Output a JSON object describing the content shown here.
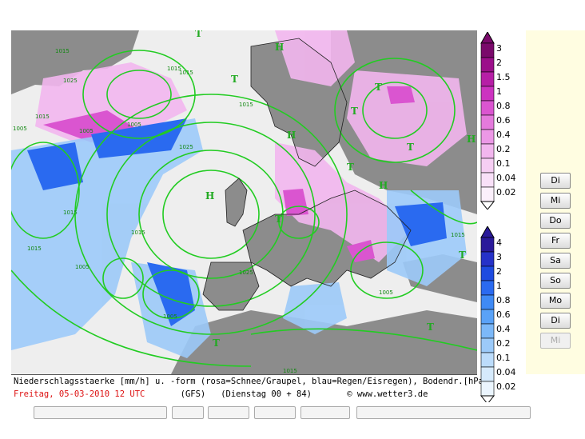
{
  "caption": {
    "line1": "Niederschlagsstaerke [mm/h] u. -form (rosa=Schnee/Graupel, blau=Regen/Eisregen), Bodendr.[hPa]",
    "date": "Freitag, 05-03-2010  12 UTC",
    "model": "(GFS)",
    "run": "(Dienstag 00 + 84)",
    "copyright": "© www.wetter3.de"
  },
  "legend_snow": {
    "color_hint": "magenta",
    "labels": [
      "3",
      "2",
      "1.5",
      "1",
      "0.8",
      "0.6",
      "0.4",
      "0.2",
      "0.1",
      "0.04",
      "0.02"
    ],
    "colors": [
      "#7a0a6b",
      "#9b0f8a",
      "#b61ea6",
      "#cc33c0",
      "#da55d0",
      "#e47adc",
      "#ec98e6",
      "#f2b6ee",
      "#f6cef3",
      "#f9e0f8",
      "#fcf0fc"
    ]
  },
  "legend_rain": {
    "color_hint": "blue",
    "labels": [
      "4",
      "3",
      "2",
      "1",
      "0.8",
      "0.6",
      "0.4",
      "0.2",
      "0.1",
      "0.04",
      "0.02"
    ],
    "colors": [
      "#2a1a9a",
      "#2632c8",
      "#1e4be0",
      "#2a6af0",
      "#3f8af5",
      "#5aa2f7",
      "#7cb8f8",
      "#9ccaf9",
      "#bcdcfb",
      "#d6eafc",
      "#ebf5fe"
    ]
  },
  "days": [
    {
      "label": "Di",
      "enabled": true
    },
    {
      "label": "Mi",
      "enabled": true
    },
    {
      "label": "Do",
      "enabled": true
    },
    {
      "label": "Fr",
      "enabled": true
    },
    {
      "label": "Sa",
      "enabled": true
    },
    {
      "label": "So",
      "enabled": true
    },
    {
      "label": "Mo",
      "enabled": true
    },
    {
      "label": "Di",
      "enabled": true
    },
    {
      "label": "Mi",
      "enabled": false
    }
  ],
  "map": {
    "isobar_labels": [
      "1015",
      "1015",
      "1015",
      "1025",
      "1005",
      "1015",
      "1005",
      "1005",
      "1025",
      "1005",
      "1025",
      "1015",
      "1005",
      "1015",
      "1005",
      "1015",
      "1015",
      "1015",
      "1015"
    ],
    "pressure_centers": [
      "H",
      "H",
      "H",
      "H",
      "H",
      "T",
      "T",
      "T",
      "T",
      "T",
      "T",
      "T",
      "T",
      "T",
      "T"
    ],
    "colors": {
      "land": "#8a8a8a",
      "sea": "#f0f0f0",
      "isobar": "#22cc22"
    }
  }
}
